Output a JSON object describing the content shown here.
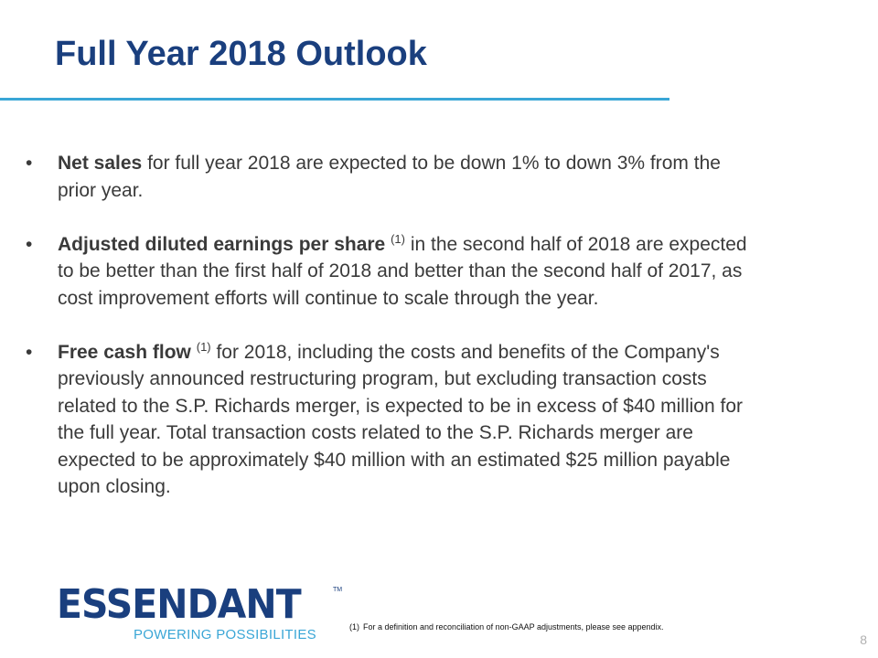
{
  "slide": {
    "title": "Full Year 2018 Outlook",
    "page_number": "8"
  },
  "bullets": [
    {
      "bold": "Net sales",
      "sup": "",
      "text": " for full year 2018 are expected to be down 1% to down 3% from the prior year."
    },
    {
      "bold": "Adjusted diluted earnings per share",
      "sup": "(1)",
      "text": " in the second half of 2018 are expected to be better than the first half of 2018 and better than the second half of 2017, as cost improvement efforts will continue to scale through the year."
    },
    {
      "bold": "Free cash flow",
      "sup": "(1)",
      "text": " for 2018, including the costs and benefits of the Company's previously announced restructuring program, but excluding transaction costs related to the S.P. Richards merger, is expected to be in excess of $40 million for the full year. Total transaction costs related to the S.P. Richards merger are expected to be approximately $40 million with an estimated $25 million payable upon closing."
    }
  ],
  "logo": {
    "wordmark": "ESSENDANT",
    "trademark": "TM",
    "tagline": "POWERING POSSIBILITIES",
    "colors": {
      "primary": "#1a3f7e",
      "accent": "#3aa6d6"
    }
  },
  "footnote": {
    "marker": "(1)",
    "text": "For a definition and reconciliation of non-GAAP adjustments, please see appendix."
  },
  "colors": {
    "title": "#1a3f7e",
    "rule": "#3aa6d6",
    "body_text": "#3a3a3a"
  }
}
